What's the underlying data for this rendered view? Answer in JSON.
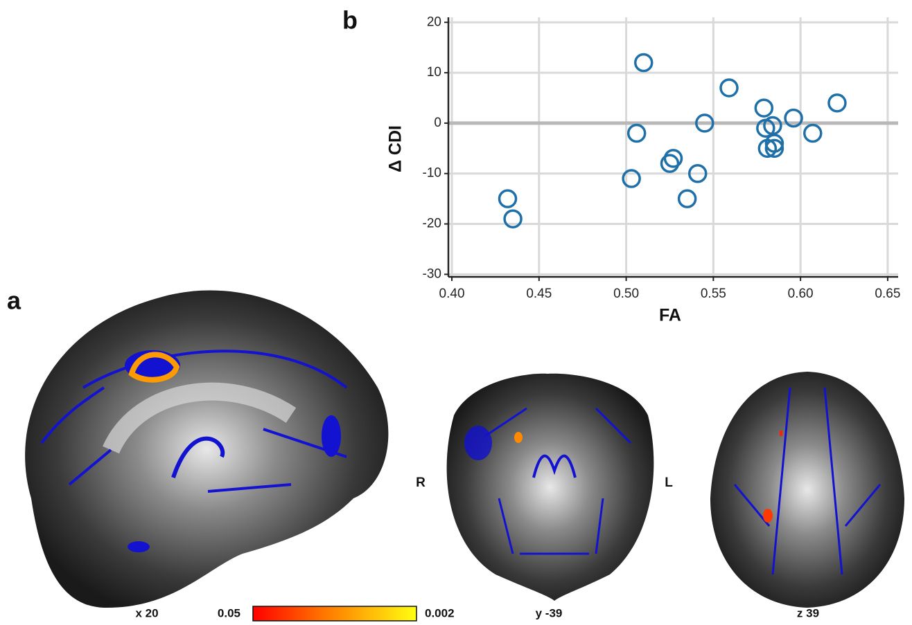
{
  "chart_data": {
    "type": "scatter",
    "x_label": "FA",
    "y_label": "Δ CDI",
    "color": "#1f6fa8",
    "grid": true,
    "hline": 0,
    "x": [
      0.432,
      0.435,
      0.503,
      0.506,
      0.51,
      0.525,
      0.527,
      0.535,
      0.541,
      0.545,
      0.559,
      0.579,
      0.58,
      0.581,
      0.584,
      0.585,
      0.585,
      0.596,
      0.607,
      0.621
    ],
    "values": [
      -15,
      -19,
      -11,
      -2,
      12,
      -8,
      -7,
      -15,
      -10,
      0,
      7,
      3,
      -1,
      -5,
      -0.5,
      -4,
      -5,
      1,
      -2,
      4
    ],
    "xlim": [
      0.398,
      0.656
    ],
    "ylim": [
      -30.5,
      21
    ],
    "xticks": [
      {
        "value": 0.4,
        "label": "0.40"
      },
      0.45,
      {
        "value": 0.5,
        "label": "0.50"
      },
      0.55,
      {
        "value": 0.6,
        "label": "0.60"
      },
      0.65
    ],
    "yticks": [
      -30,
      -20,
      -10,
      0,
      10,
      20
    ]
  },
  "panels": {
    "a": "a",
    "b": "b",
    "sagittal": "x 20",
    "coronal": "y -39",
    "axial": "z 39",
    "right": "R",
    "left": "L",
    "colorbar": {
      "low": "0.05",
      "high": "0.002"
    }
  }
}
